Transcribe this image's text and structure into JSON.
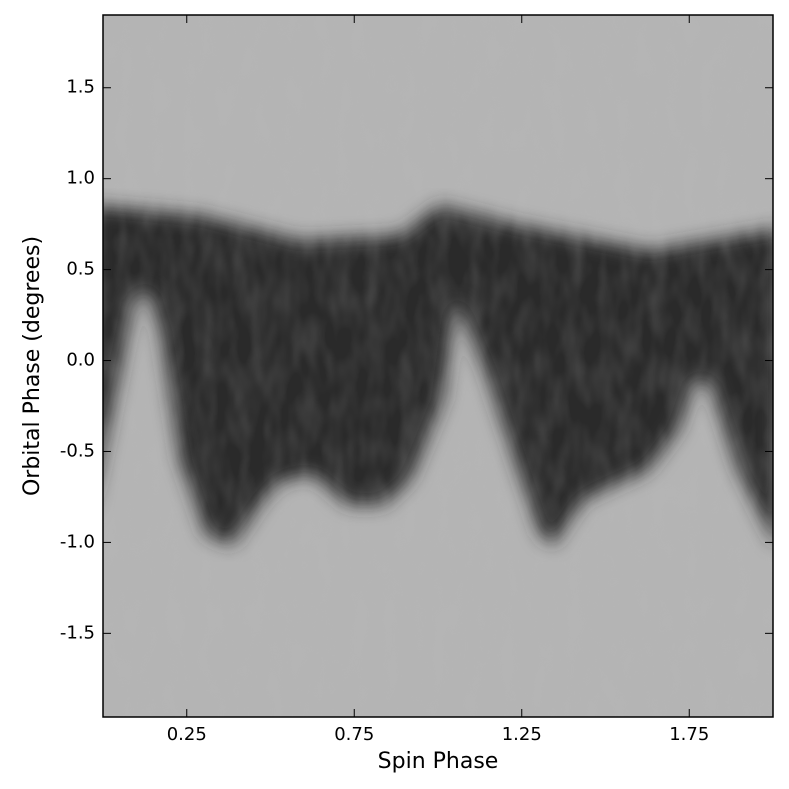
{
  "chart_data": {
    "type": "heatmap",
    "x_label": "Spin Phase",
    "y_label": "Orbital Phase (degrees)",
    "xlim": [
      0,
      2
    ],
    "xticks": [
      0.25,
      0.75,
      1.25,
      1.75
    ],
    "ylim": [
      -1.96,
      1.9
    ],
    "yticks": [
      1.5,
      {
        "value": 1,
        "label": "1.0"
      },
      0.5,
      {
        "value": 0,
        "label": "0.0"
      },
      -0.5,
      {
        "value": -1,
        "label": "-1.0"
      },
      -1.5
    ],
    "colormap": "gray"
  }
}
